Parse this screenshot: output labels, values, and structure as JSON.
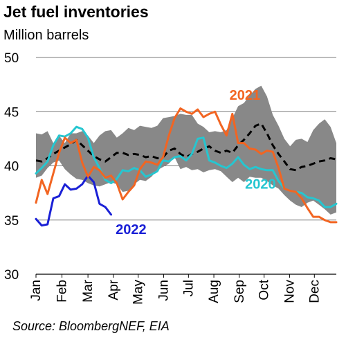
{
  "title": "Jet fuel inventories",
  "subtitle": "Million barrels",
  "source": "Source: BloombergNEF,  EIA",
  "colors": {
    "band": "#888888",
    "avg": "#000000",
    "2020": "#26C6D0",
    "2021": "#F26522",
    "2022": "#1A20D6"
  },
  "chart_data": {
    "type": "line",
    "ylabel": "Million barrels",
    "ylim": [
      30,
      50
    ],
    "yticks": [
      30,
      35,
      40,
      45,
      50
    ],
    "x_range_weeks": [
      1,
      53
    ],
    "month_labels": [
      "Jan",
      "Feb",
      "Mar",
      "Apr",
      "May",
      "Jun",
      "Jul",
      "Aug",
      "Sep",
      "Oct",
      "Nov",
      "Dec"
    ],
    "month_start_weeks": [
      1,
      5.5,
      10,
      14.4,
      18.7,
      23.1,
      27.4,
      31.8,
      36.2,
      40.5,
      44.9,
      49.2
    ],
    "grid": "horizontal",
    "band": {
      "name": "range",
      "x": [
        1,
        2,
        3,
        4,
        5,
        6,
        7,
        8,
        9,
        10,
        11,
        12,
        13,
        14,
        15,
        16,
        17,
        18,
        19,
        20,
        21,
        22,
        23,
        24,
        25,
        26,
        27,
        28,
        29,
        30,
        31,
        32,
        33,
        34,
        35,
        36,
        37,
        38,
        39,
        40,
        41,
        42,
        43,
        44,
        45,
        46,
        47,
        48,
        49,
        50,
        51,
        52,
        53
      ],
      "low": [
        38.9,
        39.1,
        39.8,
        40.3,
        40.5,
        39.7,
        39.2,
        38.8,
        38.7,
        38.4,
        38.2,
        38.1,
        38.3,
        38.5,
        38.3,
        37.6,
        37.7,
        38.3,
        38.7,
        38.6,
        39.0,
        39.6,
        39.9,
        40.2,
        40.8,
        39.7,
        39.9,
        39.6,
        39.7,
        39.4,
        39.6,
        39.7,
        39.5,
        39.0,
        38.5,
        38.9,
        38.5,
        39.0,
        38.9,
        38.9,
        38.6,
        38.2,
        37.9,
        37.3,
        36.8,
        36.4,
        36.2,
        36.6,
        36.8,
        36.4,
        36.0,
        35.5,
        35.7
      ],
      "high": [
        43.0,
        42.9,
        43.2,
        42.1,
        42.8,
        42.1,
        43.0,
        43.0,
        43.2,
        42.8,
        42.1,
        42.8,
        43.2,
        43.3,
        42.6,
        43.0,
        43.5,
        43.3,
        43.7,
        43.6,
        43.5,
        43.7,
        44.4,
        44.5,
        44.6,
        44.8,
        44.7,
        44.7,
        43.9,
        43.6,
        43.1,
        43.2,
        43.1,
        43.3,
        44.4,
        45.5,
        45.8,
        46.5,
        47.1,
        47.4,
        46.4,
        44.7,
        43.7,
        42.5,
        41.8,
        42.4,
        42.5,
        42.2,
        43.3,
        43.9,
        44.3,
        43.6,
        42.1
      ]
    },
    "series": [
      {
        "name": "2020",
        "x": [
          1,
          2,
          3,
          4,
          5,
          6,
          7,
          8,
          9,
          10,
          11,
          12,
          13,
          14,
          15,
          16,
          17,
          18,
          19,
          20,
          21,
          22,
          23,
          24,
          25,
          26,
          27,
          28,
          29,
          30,
          31,
          32,
          33,
          34,
          35,
          36,
          37,
          38,
          39,
          40,
          41,
          42,
          43,
          44,
          45,
          46,
          47,
          48,
          49,
          50,
          51,
          52,
          53
        ],
        "values": [
          39.3,
          39.8,
          40.4,
          41.9,
          42.8,
          42.7,
          43.0,
          43.6,
          43.4,
          42.6,
          40.8,
          39.8,
          38.7,
          38.4,
          38.8,
          39.6,
          39.5,
          39.8,
          39.6,
          39.0,
          39.2,
          39.5,
          40.5,
          40.4,
          40.8,
          40.9,
          40.5,
          41.1,
          42.5,
          42.6,
          40.5,
          40.3,
          40.0,
          39.8,
          40.2,
          40.8,
          40.1,
          39.7,
          39.9,
          39.7,
          39.6,
          39.6,
          38.6,
          37.9,
          37.7,
          37.6,
          37.5,
          37.1,
          37.0,
          36.8,
          36.2,
          36.2,
          36.5
        ]
      },
      {
        "name": "2021",
        "x": [
          1,
          2,
          3,
          4,
          5,
          6,
          7,
          8,
          9,
          10,
          11,
          12,
          13,
          14,
          15,
          16,
          17,
          18,
          19,
          20,
          21,
          22,
          23,
          24,
          25,
          26,
          27,
          28,
          29,
          30,
          31,
          32,
          33,
          34,
          35,
          36,
          37,
          38,
          39,
          40,
          41,
          42,
          43,
          44,
          45,
          46,
          47,
          48,
          49,
          50,
          51,
          52,
          53
        ],
        "values": [
          36.6,
          38.7,
          37.4,
          39.3,
          41.2,
          42.6,
          42.1,
          42.4,
          40.3,
          39.0,
          39.9,
          39.6,
          38.9,
          39.1,
          38.4,
          36.9,
          37.6,
          38.2,
          39.7,
          40.4,
          40.3,
          40.1,
          40.8,
          42.8,
          44.4,
          45.3,
          45.0,
          44.8,
          45.2,
          44.5,
          44.8,
          45.0,
          43.8,
          42.8,
          44.8,
          42.1,
          42.1,
          41.6,
          41.5,
          41.1,
          41.4,
          41.3,
          39.8,
          37.9,
          37.7,
          37.6,
          37.0,
          36.1,
          35.3,
          35.3,
          35.0,
          34.8,
          34.8
        ]
      },
      {
        "name": "2022",
        "x": [
          1,
          2,
          3,
          4,
          5,
          6,
          7,
          8,
          9,
          10,
          11,
          12,
          13,
          14
        ],
        "values": [
          35.1,
          34.5,
          34.6,
          37.0,
          37.2,
          38.3,
          37.8,
          37.9,
          38.3,
          39.1,
          38.5,
          36.5,
          36.2,
          35.5
        ]
      },
      {
        "name": "",
        "dashed": true,
        "x": [
          1,
          2,
          3,
          4,
          5,
          6,
          7,
          8,
          9,
          10,
          11,
          12,
          13,
          14,
          15,
          16,
          17,
          18,
          19,
          20,
          21,
          22,
          23,
          24,
          25,
          26,
          27,
          28,
          29,
          30,
          31,
          32,
          33,
          34,
          35,
          36,
          37,
          38,
          39,
          40,
          41,
          42,
          43,
          44,
          45,
          46,
          47,
          48,
          49,
          50,
          51,
          52,
          53
        ],
        "values": [
          40.5,
          40.4,
          40.7,
          41.1,
          41.4,
          41.7,
          42.0,
          42.4,
          41.9,
          41.4,
          40.9,
          40.6,
          40.4,
          40.8,
          41.2,
          41.2,
          41.0,
          41.1,
          41.0,
          40.8,
          40.9,
          40.7,
          40.8,
          41.4,
          41.6,
          41.1,
          40.8,
          41.1,
          41.3,
          41.6,
          41.8,
          41.4,
          41.2,
          41.4,
          41.2,
          41.9,
          42.4,
          43.0,
          43.7,
          43.9,
          43.0,
          41.9,
          41.1,
          40.4,
          39.7,
          39.6,
          39.9,
          40.0,
          40.2,
          40.4,
          40.5,
          40.7,
          40.6
        ]
      }
    ],
    "labels": {
      "2021": "2021",
      "2020": "2020",
      "2022": "2022"
    }
  }
}
